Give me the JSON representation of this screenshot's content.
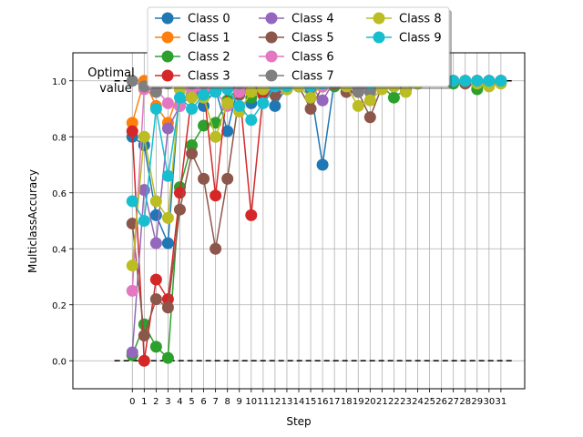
{
  "chart_data": {
    "type": "line",
    "title": "",
    "xlabel": "Step",
    "ylabel": "MulticlassAccuracy",
    "xlim": [
      -5,
      33
    ],
    "ylim": [
      -0.1,
      1.1
    ],
    "x_ticks": [
      0,
      1,
      2,
      3,
      4,
      5,
      6,
      7,
      8,
      9,
      10,
      11,
      12,
      13,
      14,
      15,
      16,
      17,
      18,
      19,
      20,
      21,
      22,
      23,
      24,
      25,
      26,
      27,
      28,
      29,
      30,
      31
    ],
    "y_ticks": [
      0.0,
      0.2,
      0.4,
      0.6,
      0.8,
      1.0
    ],
    "y_tick_labels": [
      "0.0",
      "0.2",
      "0.4",
      "0.6",
      "0.8",
      "1.0"
    ],
    "grid": true,
    "legend_position": "top-center",
    "reference_lines": [
      {
        "y": 1.0,
        "style": "dashed",
        "color": "#000000",
        "x_from": -1.5,
        "x_to": 32
      },
      {
        "y": 0.0,
        "style": "dashed",
        "color": "#000000",
        "x_from": -1.5,
        "x_to": 32
      }
    ],
    "annotation": {
      "lines": [
        "Optimal",
        "value"
      ],
      "x": -1.7,
      "y": 1.0
    },
    "x": [
      0,
      1,
      2,
      3,
      4,
      5,
      6,
      7,
      8,
      9,
      10,
      11,
      12,
      13,
      14,
      15,
      16,
      17,
      18,
      19,
      20,
      21,
      22,
      23,
      24,
      25,
      26,
      27,
      28,
      29,
      30,
      31
    ],
    "series": [
      {
        "name": "Class 0",
        "color": "#1f77b4",
        "values": [
          0.8,
          0.77,
          0.52,
          0.42,
          0.98,
          0.97,
          0.91,
          0.97,
          0.82,
          1.0,
          0.92,
          1.0,
          0.91,
          0.98,
          0.98,
          0.97,
          0.7,
          1.0,
          0.99,
          0.99,
          0.97,
          1.0,
          0.99,
          0.98,
          1.0,
          1.0,
          1.0,
          1.0,
          1.0,
          1.0,
          1.0,
          1.0
        ]
      },
      {
        "name": "Class 1",
        "color": "#ff7f0e",
        "values": [
          0.85,
          1.0,
          0.91,
          0.85,
          0.97,
          0.98,
          0.99,
          0.98,
          1.0,
          0.98,
          0.99,
          0.98,
          0.99,
          1.0,
          1.0,
          0.99,
          1.0,
          1.0,
          1.0,
          1.0,
          0.99,
          1.0,
          1.0,
          1.0,
          1.0,
          1.0,
          1.0,
          1.0,
          1.0,
          1.0,
          1.0,
          1.0
        ]
      },
      {
        "name": "Class 2",
        "color": "#2ca02c",
        "values": [
          0.02,
          0.13,
          0.05,
          0.01,
          0.62,
          0.77,
          0.84,
          0.85,
          0.93,
          0.98,
          0.94,
          0.97,
          0.98,
          0.97,
          0.98,
          0.98,
          0.98,
          0.98,
          0.98,
          0.98,
          0.99,
          0.98,
          0.94,
          0.97,
          0.99,
          1.0,
          1.0,
          0.99,
          1.0,
          0.97,
          0.99,
          1.0
        ]
      },
      {
        "name": "Class 3",
        "color": "#d62728",
        "values": [
          0.82,
          0.0,
          0.29,
          0.22,
          0.6,
          0.95,
          0.97,
          0.59,
          0.98,
          0.97,
          0.52,
          0.95,
          1.0,
          0.99,
          0.99,
          1.0,
          0.98,
          0.99,
          1.0,
          0.97,
          1.0,
          0.98,
          0.99,
          1.0,
          1.0,
          1.0,
          1.0,
          1.0,
          1.0,
          1.0,
          1.0,
          1.0
        ]
      },
      {
        "name": "Class 4",
        "color": "#9467bd",
        "values": [
          0.03,
          0.61,
          0.42,
          0.83,
          0.91,
          0.95,
          0.96,
          0.99,
          0.98,
          0.96,
          0.98,
          0.97,
          0.96,
          0.98,
          1.0,
          0.98,
          0.93,
          1.0,
          0.99,
          0.98,
          0.97,
          1.0,
          0.98,
          1.0,
          0.99,
          1.0,
          1.0,
          1.0,
          1.0,
          1.0,
          1.0,
          1.0
        ]
      },
      {
        "name": "Class 5",
        "color": "#8c564b",
        "values": [
          0.49,
          0.09,
          0.22,
          0.19,
          0.54,
          0.74,
          0.65,
          0.4,
          0.65,
          0.95,
          0.97,
          0.97,
          0.95,
          0.97,
          0.98,
          0.9,
          0.98,
          0.99,
          0.96,
          0.96,
          0.87,
          0.98,
          0.99,
          0.97,
          0.99,
          1.0,
          1.0,
          1.0,
          0.99,
          1.0,
          0.99,
          1.0
        ]
      },
      {
        "name": "Class 6",
        "color": "#e377c2",
        "values": [
          0.25,
          0.97,
          0.97,
          0.92,
          0.91,
          0.97,
          0.97,
          0.96,
          0.91,
          0.96,
          0.99,
          0.97,
          0.99,
          0.99,
          1.0,
          0.99,
          0.98,
          1.0,
          0.99,
          0.99,
          0.99,
          1.0,
          1.0,
          1.0,
          1.0,
          1.0,
          1.0,
          1.0,
          1.0,
          1.0,
          1.0,
          1.0
        ]
      },
      {
        "name": "Class 7",
        "color": "#7f7f7f",
        "values": [
          1.0,
          0.98,
          0.96,
          0.99,
          0.98,
          0.99,
          0.99,
          1.0,
          0.99,
          0.99,
          0.99,
          1.0,
          0.99,
          1.0,
          0.99,
          1.0,
          1.0,
          1.0,
          0.99,
          0.96,
          0.96,
          0.99,
          0.98,
          0.99,
          1.0,
          1.0,
          1.0,
          1.0,
          1.0,
          1.0,
          0.99,
          1.0
        ]
      },
      {
        "name": "Class 8",
        "color": "#bcbd22",
        "values": [
          0.34,
          0.8,
          0.57,
          0.51,
          0.97,
          0.94,
          0.94,
          0.8,
          0.92,
          0.89,
          0.96,
          0.97,
          0.99,
          0.97,
          0.98,
          0.94,
          0.99,
          1.0,
          0.98,
          0.91,
          0.93,
          0.97,
          0.98,
          0.96,
          0.99,
          1.0,
          1.0,
          1.0,
          1.0,
          0.99,
          0.98,
          0.99
        ]
      },
      {
        "name": "Class 9",
        "color": "#17becf",
        "values": [
          0.57,
          0.5,
          0.9,
          0.66,
          0.94,
          0.9,
          0.95,
          0.96,
          0.97,
          0.91,
          0.86,
          0.92,
          0.98,
          0.98,
          1.0,
          0.98,
          0.99,
          1.0,
          1.0,
          1.0,
          0.99,
          1.0,
          1.0,
          1.0,
          1.0,
          1.0,
          1.0,
          1.0,
          1.0,
          1.0,
          1.0,
          1.0
        ]
      }
    ]
  }
}
